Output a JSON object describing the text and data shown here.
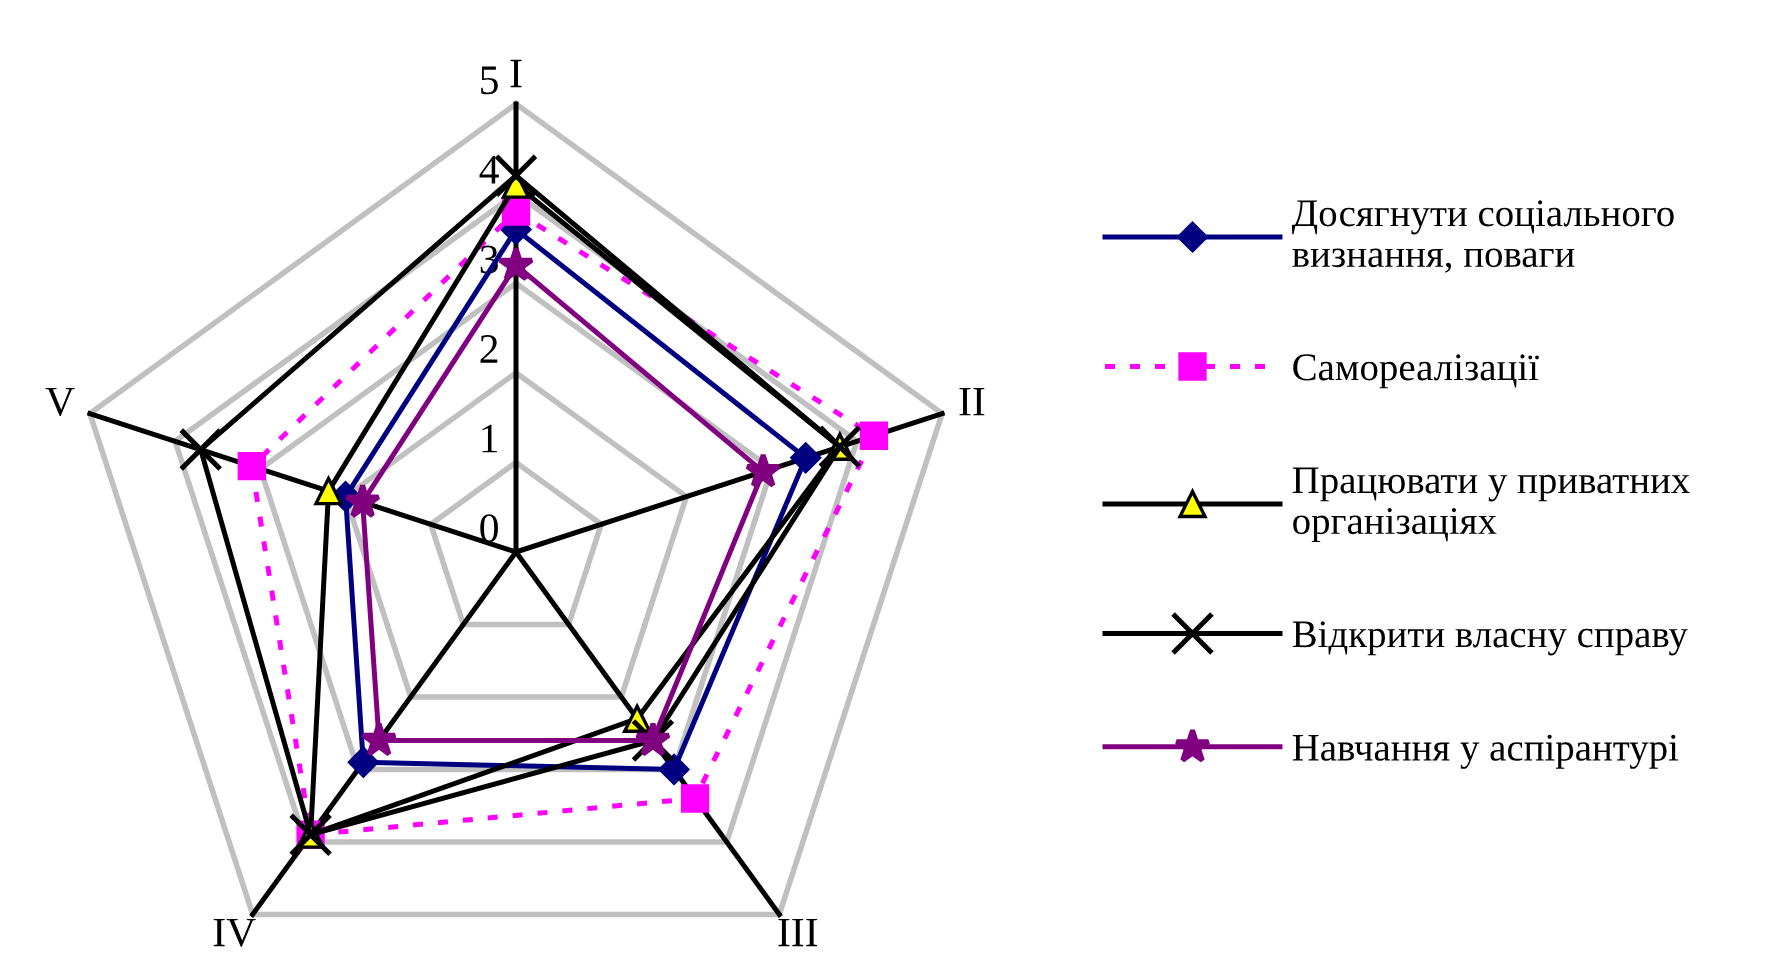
{
  "chart_data": {
    "type": "radar",
    "categories": [
      "I",
      "II",
      "III",
      "IV",
      "V"
    ],
    "ylim": [
      0,
      5
    ],
    "yticks": [
      0,
      1,
      2,
      3,
      4,
      5
    ],
    "grid": true,
    "legend": "right",
    "line_style": "solid",
    "series": [
      {
        "name": "Досягнути соціального\nвизнання, поваги",
        "color": "#000080",
        "marker": "diamond",
        "values": [
          3.6,
          3.4,
          3.0,
          2.9,
          2.0
        ]
      },
      {
        "name": "Самореалізації",
        "color": "#ff00ff",
        "marker": "square",
        "line_style": "dotted",
        "values": [
          3.8,
          4.2,
          3.4,
          3.9,
          3.1
        ]
      },
      {
        "name": "Працювати у приватних\nорганізаціях",
        "color": "#000000",
        "marker": "triangle",
        "values": [
          4.1,
          3.8,
          2.3,
          3.9,
          2.2
        ]
      },
      {
        "name": "Відкрити власну справу",
        "color": "#000000",
        "marker": "cross",
        "values": [
          4.2,
          3.8,
          2.6,
          3.9,
          3.7
        ]
      },
      {
        "name": "Навчання у аспірантурі",
        "color": "#800080",
        "marker": "star",
        "values": [
          3.2,
          2.9,
          2.6,
          2.6,
          1.8
        ]
      }
    ]
  }
}
